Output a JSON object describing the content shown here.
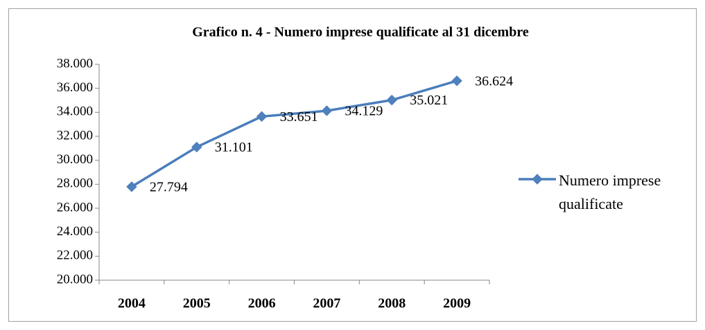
{
  "chart_data": {
    "type": "line",
    "title": "Grafico  n. 4 - Numero imprese qualificate al 31 dicembre",
    "categories": [
      "2004",
      "2005",
      "2006",
      "2007",
      "2008",
      "2009"
    ],
    "series": [
      {
        "name": "Numero imprese qualificate",
        "color": "#4a7ebb",
        "values": [
          27794,
          31101,
          33651,
          34129,
          35021,
          36624
        ],
        "value_labels": [
          "27.794",
          "31.101",
          "33.651",
          "34.129",
          "35.021",
          "36.624"
        ]
      }
    ],
    "ylim": [
      20000,
      38000
    ],
    "yticks": [
      {
        "value": 20000,
        "label": "20.000"
      },
      {
        "value": 22000,
        "label": "22.000"
      },
      {
        "value": 24000,
        "label": "24.000"
      },
      {
        "value": 26000,
        "label": "26.000"
      },
      {
        "value": 28000,
        "label": "28.000"
      },
      {
        "value": 30000,
        "label": "30.000"
      },
      {
        "value": 32000,
        "label": "32.000"
      },
      {
        "value": 34000,
        "label": "34.000"
      },
      {
        "value": 36000,
        "label": "36.000"
      },
      {
        "value": 38000,
        "label": "38.000"
      }
    ],
    "grid": false,
    "legend": "right"
  }
}
